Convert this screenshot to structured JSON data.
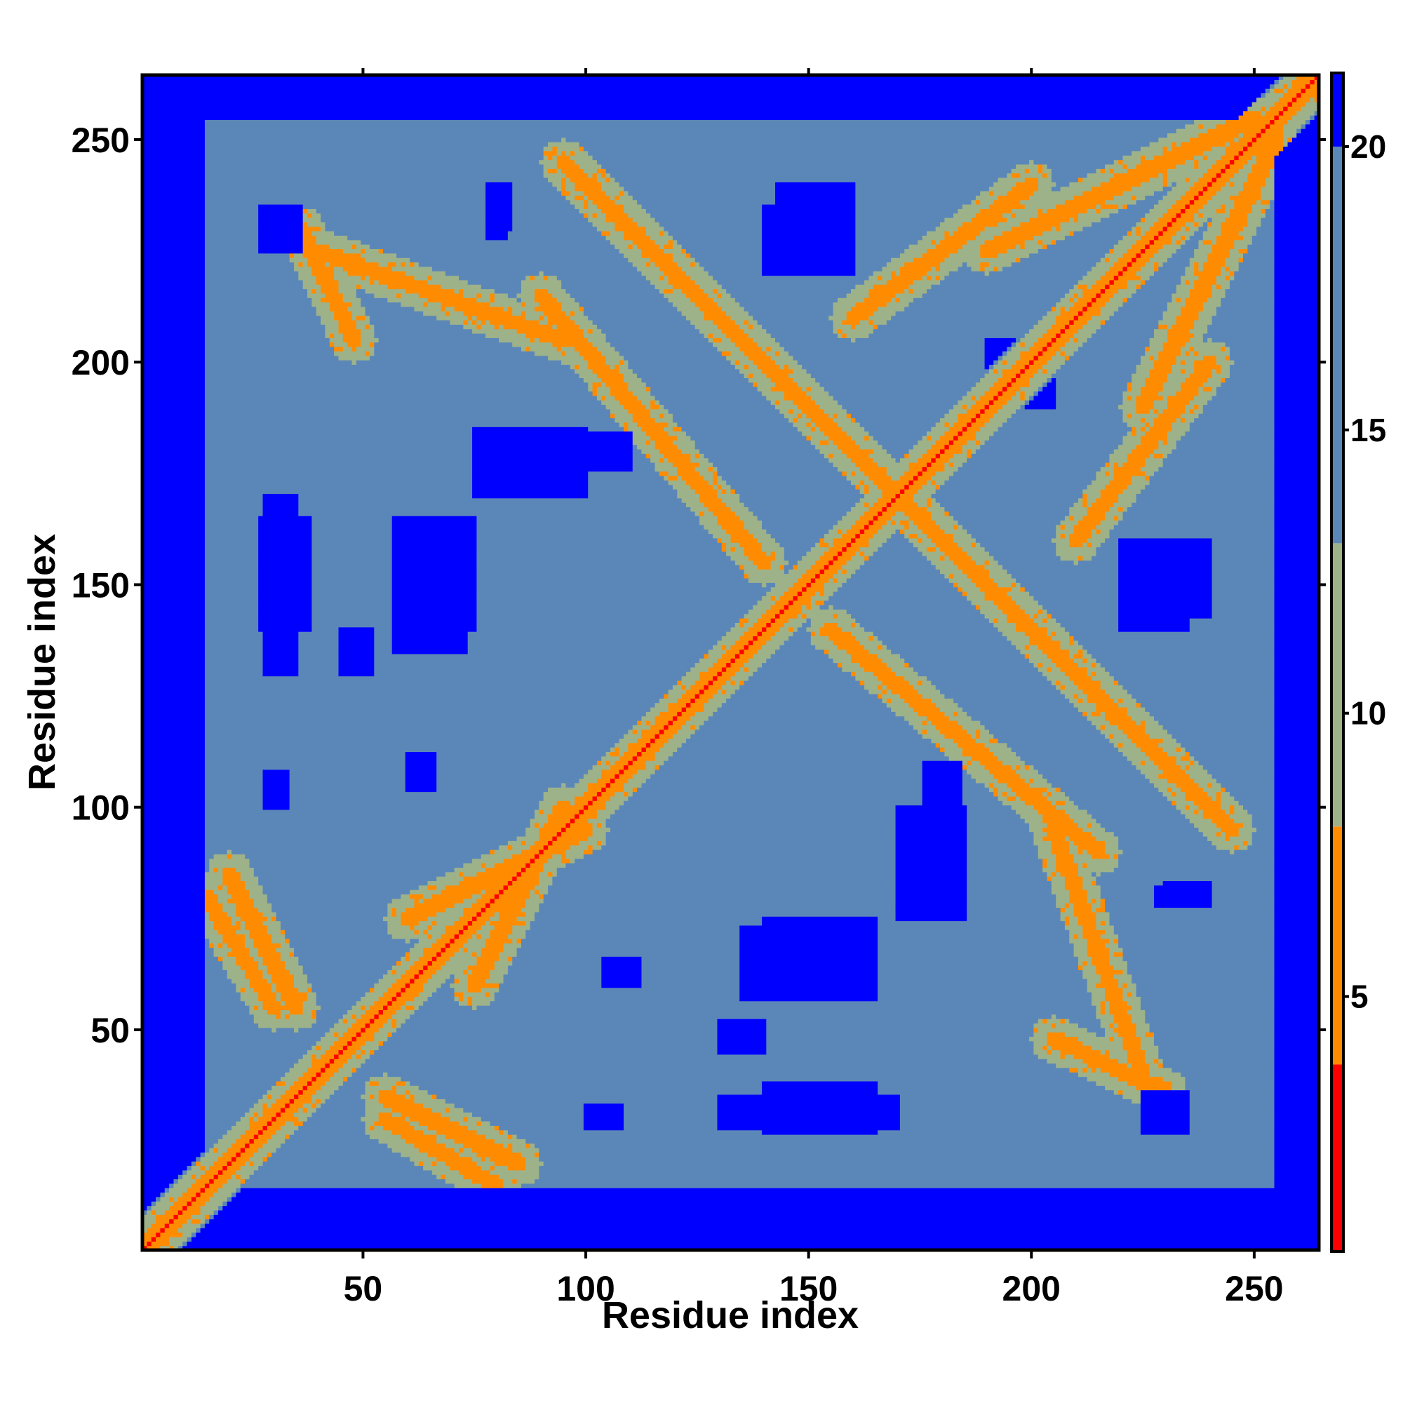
{
  "chart_data": {
    "type": "heatmap",
    "title": "",
    "xlabel": "Residue index",
    "ylabel": "Residue index",
    "n_residues": 264,
    "xlim": [
      1,
      264
    ],
    "ylim": [
      1,
      264
    ],
    "x_ticks": [
      50,
      100,
      150,
      200,
      250
    ],
    "y_ticks": [
      50,
      100,
      150,
      200,
      250
    ],
    "x_tick_labels": [
      "50",
      "100",
      "150",
      "200",
      "250"
    ],
    "y_tick_labels": [
      "50",
      "100",
      "150",
      "200",
      "250"
    ],
    "colorbar": {
      "range": [
        0.5,
        21.3
      ],
      "ticks": [
        5,
        10,
        15,
        20
      ],
      "tick_labels": [
        "5",
        "10",
        "15",
        "20"
      ],
      "segments": [
        {
          "from": 0.5,
          "to": 3.8,
          "color": "#ff0000"
        },
        {
          "from": 3.8,
          "to": 8.0,
          "color": "#ff8c00"
        },
        {
          "from": 8.0,
          "to": 13.0,
          "color": "#9eb28a"
        },
        {
          "from": 13.0,
          "to": 20.0,
          "color": "#5b87b8"
        },
        {
          "from": 20.0,
          "to": 21.3,
          "color": "#0000ff"
        }
      ]
    },
    "colors": {
      "near": "#ff0000",
      "close": "#ff8c00",
      "medium": "#9eb28a",
      "far": "#5b87b8",
      "very_far": "#0000ff"
    },
    "bands": [
      {
        "type": "contact-band",
        "x_start": 95,
        "x_end": 180,
        "y_start": 245,
        "y_end": 160,
        "min": 5
      },
      {
        "type": "contact-band",
        "x_start": 155,
        "x_end": 215,
        "y_start": 140,
        "y_end": 90,
        "min": 5
      },
      {
        "type": "contact-band",
        "x_start": 190,
        "x_end": 250,
        "y_start": 225,
        "y_end": 255,
        "min": 5
      },
      {
        "type": "contact-band",
        "x_start": 210,
        "x_end": 240,
        "y_start": 160,
        "y_end": 200,
        "min": 5
      },
      {
        "type": "contact-band",
        "x_start": 40,
        "x_end": 95,
        "y_start": 225,
        "y_end": 205,
        "min": 5
      },
      {
        "type": "contact-band",
        "x_start": 20,
        "x_end": 35,
        "y_start": 85,
        "y_end": 55,
        "min": 5
      },
      {
        "type": "contact-band",
        "x_start": 55,
        "x_end": 80,
        "y_start": 30,
        "y_end": 15,
        "min": 5
      },
      {
        "type": "contact-band",
        "x_start": 205,
        "x_end": 230,
        "y_start": 48,
        "y_end": 36,
        "min": 5
      },
      {
        "type": "contact-band",
        "x_start": 75,
        "x_end": 95,
        "y_start": 60,
        "y_end": 100,
        "min": 5
      }
    ],
    "far_regions": [
      {
        "x": [
          1,
          14
        ],
        "y": [
          1,
          264
        ]
      },
      {
        "x": [
          1,
          264
        ],
        "y": [
          1,
          14
        ]
      },
      {
        "x": [
          255,
          264
        ],
        "y": [
          1,
          264
        ]
      },
      {
        "x": [
          1,
          264
        ],
        "y": [
          258,
          264
        ]
      },
      {
        "x": [
          27,
          38
        ],
        "y": [
          140,
          165
        ]
      },
      {
        "x": [
          57,
          73
        ],
        "y": [
          135,
          165
        ]
      },
      {
        "x": [
          140,
          165
        ],
        "y": [
          60,
          75
        ]
      },
      {
        "x": [
          140,
          160
        ],
        "y": [
          220,
          235
        ]
      },
      {
        "x": [
          223,
          240
        ],
        "y": [
          143,
          160
        ]
      },
      {
        "x": [
          130,
          170
        ],
        "y": [
          28,
          35
        ]
      },
      {
        "x": [
          75,
          100
        ],
        "y": [
          170,
          185
        ]
      },
      {
        "x": [
          190,
          200
        ],
        "y": [
          195,
          205
        ]
      },
      {
        "x": [
          28,
          32
        ],
        "y": [
          225,
          232
        ]
      },
      {
        "x": [
          78,
          83
        ],
        "y": [
          230,
          240
        ]
      },
      {
        "x": [
          45,
          52
        ],
        "y": [
          130,
          140
        ]
      },
      {
        "x": [
          60,
          66
        ],
        "y": [
          104,
          112
        ]
      },
      {
        "x": [
          28,
          33
        ],
        "y": [
          100,
          108
        ]
      },
      {
        "x": [
          176,
          184
        ],
        "y": [
          92,
          110
        ]
      },
      {
        "x": [
          228,
          238
        ],
        "y": [
          78,
          82
        ]
      },
      {
        "x": [
          225,
          235
        ],
        "y": [
          27,
          36
        ]
      }
    ]
  }
}
